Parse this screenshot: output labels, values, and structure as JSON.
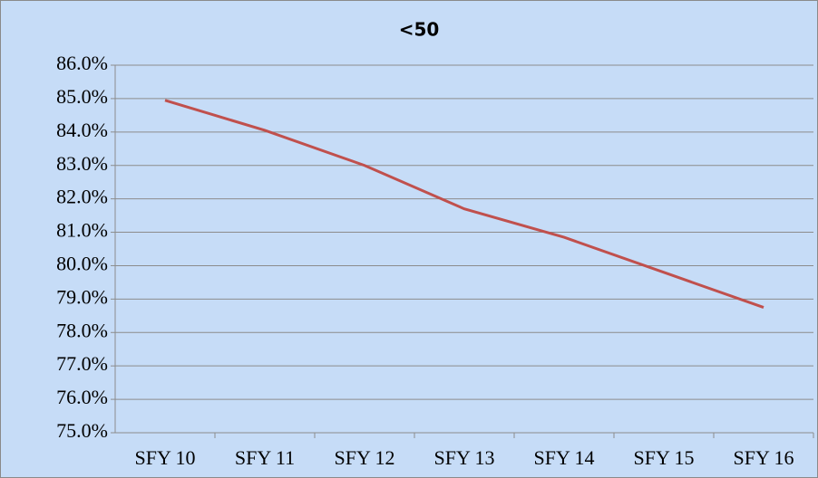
{
  "chart_data": {
    "type": "line",
    "title": "<50",
    "categories": [
      "SFY 10",
      "SFY 11",
      "SFY 12",
      "SFY 13",
      "SFY 14",
      "SFY 15",
      "SFY 16"
    ],
    "series": [
      {
        "name": "<50",
        "color": "#c0504d",
        "values": [
          84.95,
          84.05,
          83.0,
          81.7,
          80.85,
          79.8,
          78.75
        ]
      }
    ],
    "ylim": [
      75,
      86
    ],
    "yticks": [
      {
        "value": 75,
        "label": "75.0%"
      },
      {
        "value": 76,
        "label": "76.0%"
      },
      {
        "value": 77,
        "label": "77.0%"
      },
      {
        "value": 78,
        "label": "78.0%"
      },
      {
        "value": 79,
        "label": "79.0%"
      },
      {
        "value": 80,
        "label": "80.0%"
      },
      {
        "value": 81,
        "label": "81.0%"
      },
      {
        "value": 82,
        "label": "82.0%"
      },
      {
        "value": 83,
        "label": "83.0%"
      },
      {
        "value": 84,
        "label": "84.0%"
      },
      {
        "value": 85,
        "label": "85.0%"
      },
      {
        "value": 86,
        "label": "86.0%"
      }
    ],
    "grid": true
  }
}
